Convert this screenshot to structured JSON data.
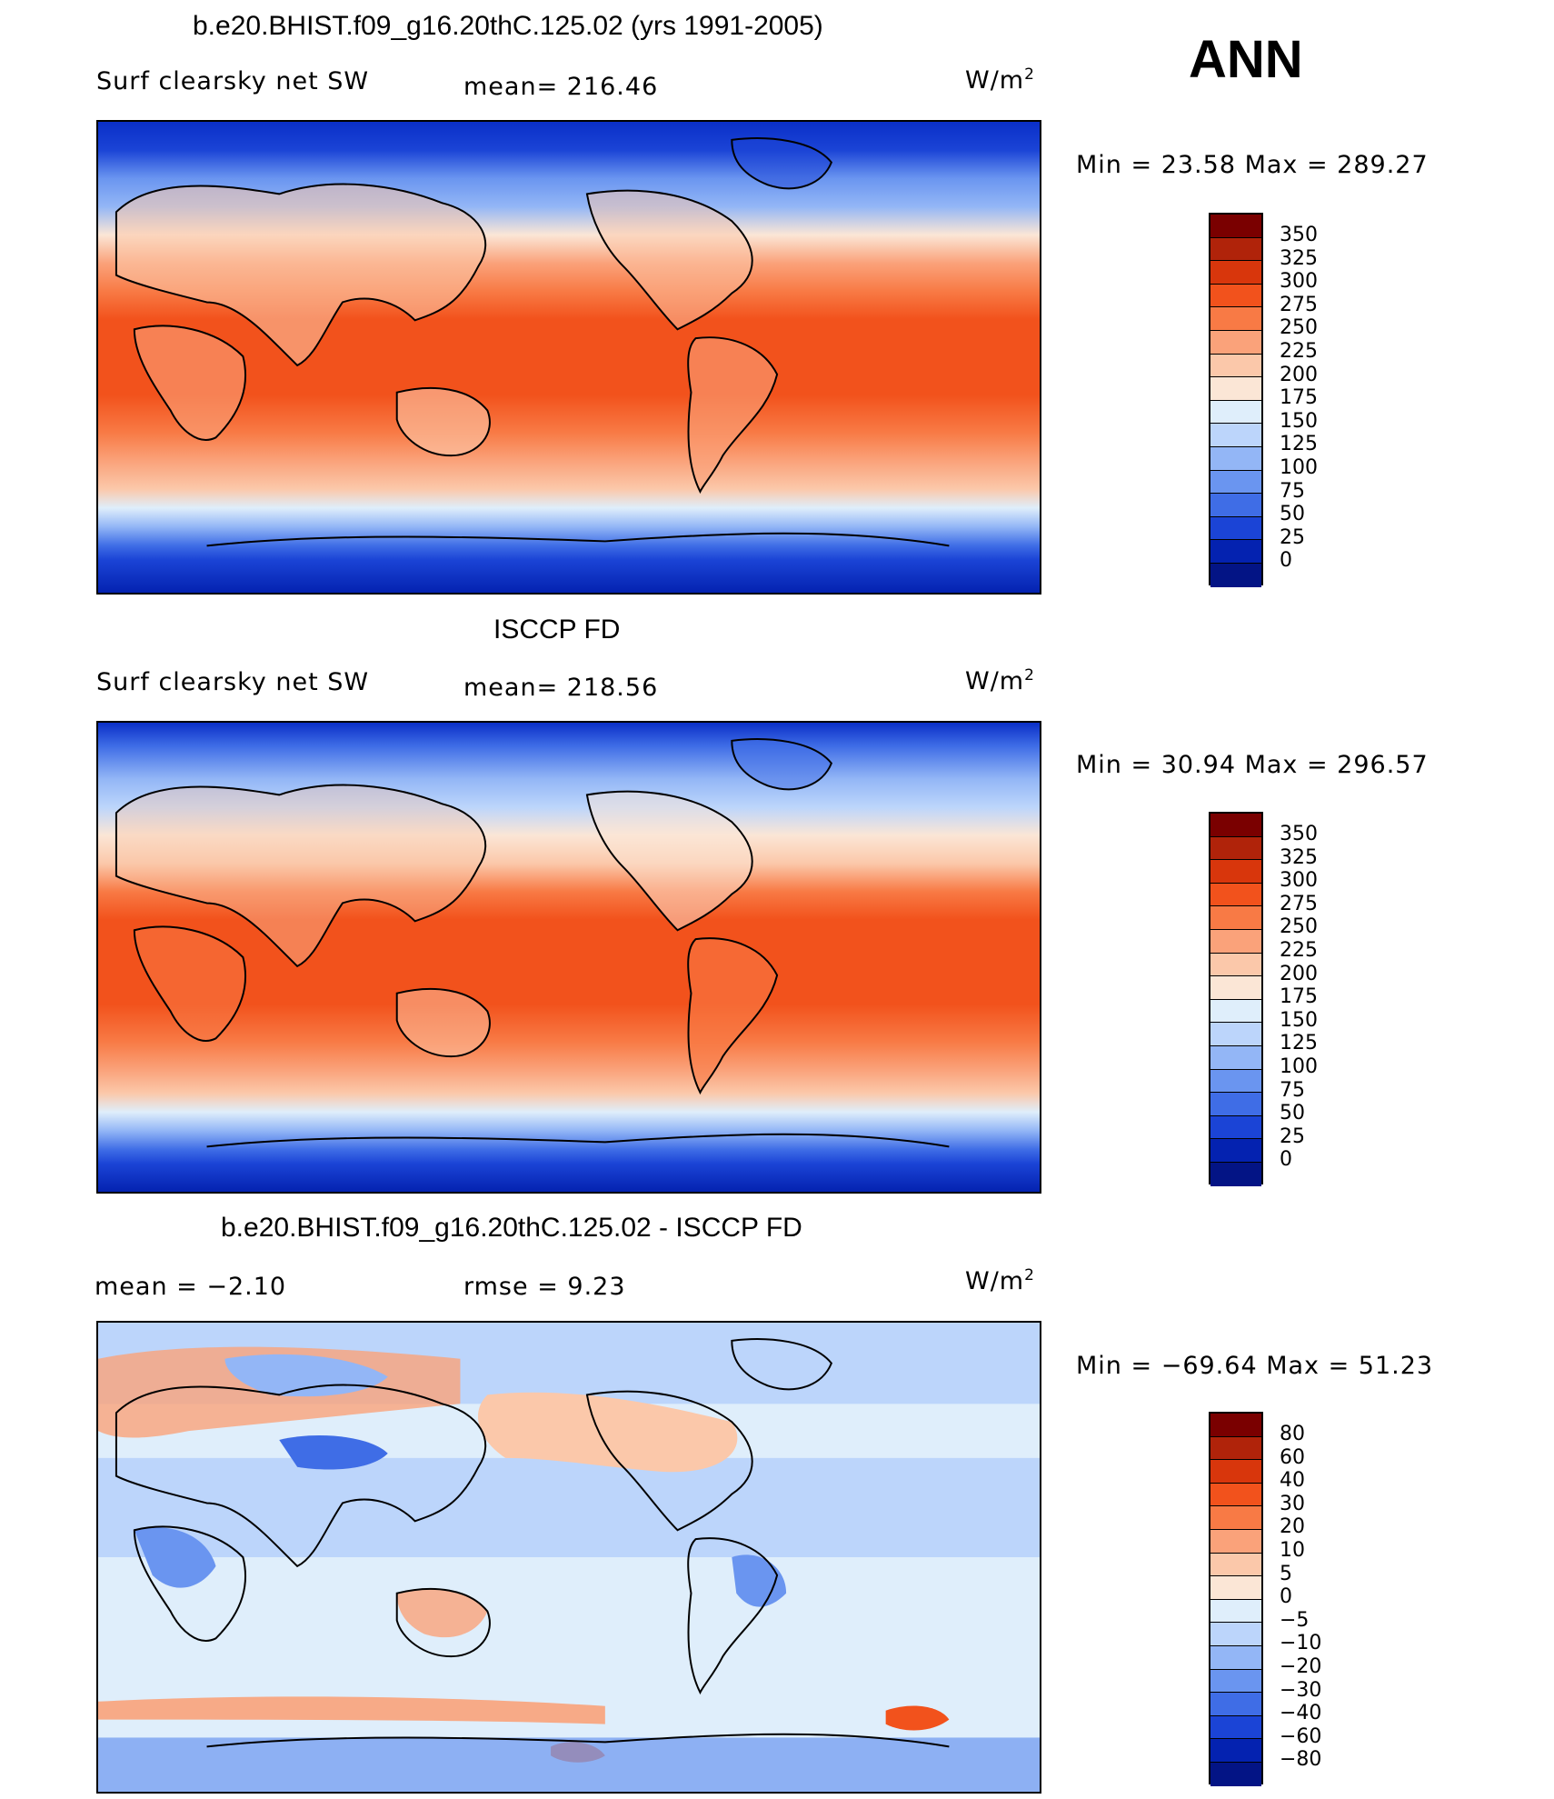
{
  "page": {
    "season": "ANN"
  },
  "panels": [
    {
      "title": "b.e20.BHIST.f09_g16.20thC.125.02 (yrs 1991-2005)",
      "left_label": "Surf clearsky net SW",
      "center_label": "mean=  216.46",
      "units": "W/m",
      "units_sup": "2",
      "minmax": "Min =   23.58 Max = 289.27",
      "colorbar": {
        "labels": [
          "350",
          "325",
          "300",
          "275",
          "250",
          "225",
          "200",
          "175",
          "150",
          "125",
          "100",
          "75",
          "50",
          "25",
          "0"
        ],
        "colors": [
          "#7a0000",
          "#b0230a",
          "#d8360c",
          "#f2521c",
          "#f87a45",
          "#faa27a",
          "#fbc8aa",
          "#fbe6d6",
          "#dfeefb",
          "#bcd5fb",
          "#93b6f6",
          "#6a95f0",
          "#3f6de6",
          "#1b44d6",
          "#0422b0",
          "#031485"
        ]
      }
    },
    {
      "title": "ISCCP FD",
      "left_label": "Surf clearsky net SW",
      "center_label": "mean=  218.56",
      "units": "W/m",
      "units_sup": "2",
      "minmax": "Min =   30.94 Max = 296.57",
      "colorbar": {
        "labels": [
          "350",
          "325",
          "300",
          "275",
          "250",
          "225",
          "200",
          "175",
          "150",
          "125",
          "100",
          "75",
          "50",
          "25",
          "0"
        ],
        "colors": [
          "#7a0000",
          "#b0230a",
          "#d8360c",
          "#f2521c",
          "#f87a45",
          "#faa27a",
          "#fbc8aa",
          "#fbe6d6",
          "#dfeefb",
          "#bcd5fb",
          "#93b6f6",
          "#6a95f0",
          "#3f6de6",
          "#1b44d6",
          "#0422b0",
          "#031485"
        ]
      }
    },
    {
      "title": "b.e20.BHIST.f09_g16.20thC.125.02 - ISCCP FD",
      "left_label": "mean =   −2.10",
      "center_label": "rmse =    9.23",
      "units": "W/m",
      "units_sup": "2",
      "minmax": "Min = −69.64 Max =  51.23",
      "colorbar": {
        "labels": [
          "80",
          "60",
          "40",
          "30",
          "20",
          "10",
          "5",
          "0",
          "−5",
          "−10",
          "−20",
          "−30",
          "−40",
          "−60",
          "−80"
        ],
        "colors": [
          "#7a0000",
          "#b0230a",
          "#d8360c",
          "#f2521c",
          "#f87a45",
          "#faa27a",
          "#fbc8aa",
          "#fbe6d6",
          "#dfeefb",
          "#bcd5fb",
          "#93b6f6",
          "#6a95f0",
          "#3f6de6",
          "#1b44d6",
          "#0422b0",
          "#031485"
        ]
      }
    }
  ],
  "chart_data": {
    "type": "heatmap",
    "title": "Surf clearsky net SW",
    "season": "ANN",
    "units": "W/m2",
    "panels": [
      {
        "name": "b.e20.BHIST.f09_g16.20thC.125.02 (yrs 1991-2005)",
        "mean": 216.46,
        "min": 23.58,
        "max": 289.27,
        "levels": [
          0,
          25,
          50,
          75,
          100,
          125,
          150,
          175,
          200,
          225,
          250,
          275,
          300,
          325,
          350
        ]
      },
      {
        "name": "ISCCP FD",
        "mean": 218.56,
        "min": 30.94,
        "max": 296.57,
        "levels": [
          0,
          25,
          50,
          75,
          100,
          125,
          150,
          175,
          200,
          225,
          250,
          275,
          300,
          325,
          350
        ]
      },
      {
        "name": "b.e20.BHIST.f09_g16.20thC.125.02 - ISCCP FD",
        "mean": -2.1,
        "rmse": 9.23,
        "min": -69.64,
        "max": 51.23,
        "levels": [
          -80,
          -60,
          -40,
          -30,
          -20,
          -10,
          -5,
          0,
          5,
          10,
          20,
          30,
          40,
          60,
          80
        ]
      }
    ]
  }
}
